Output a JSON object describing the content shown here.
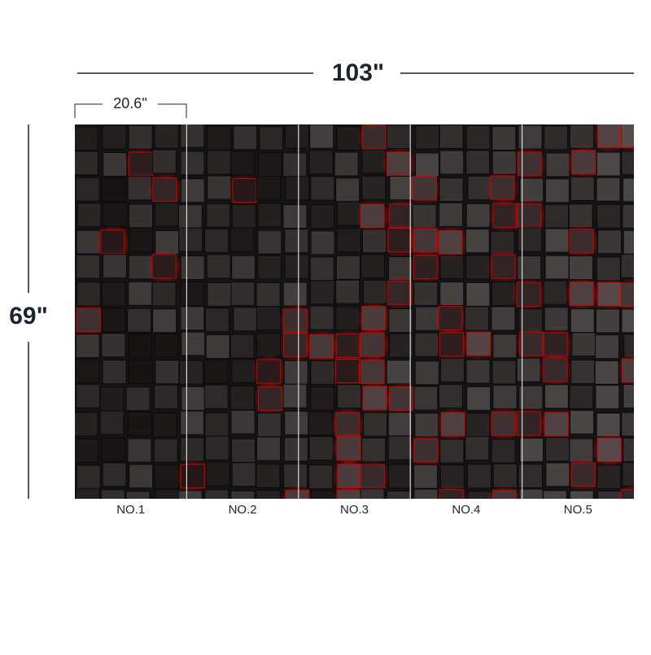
{
  "dimensions": {
    "width": "103\"",
    "panel_width": "20.6\"",
    "height": "69\""
  },
  "panels": [
    "NO.1",
    "NO.2",
    "NO.3",
    "NO.4",
    "NO.5"
  ]
}
